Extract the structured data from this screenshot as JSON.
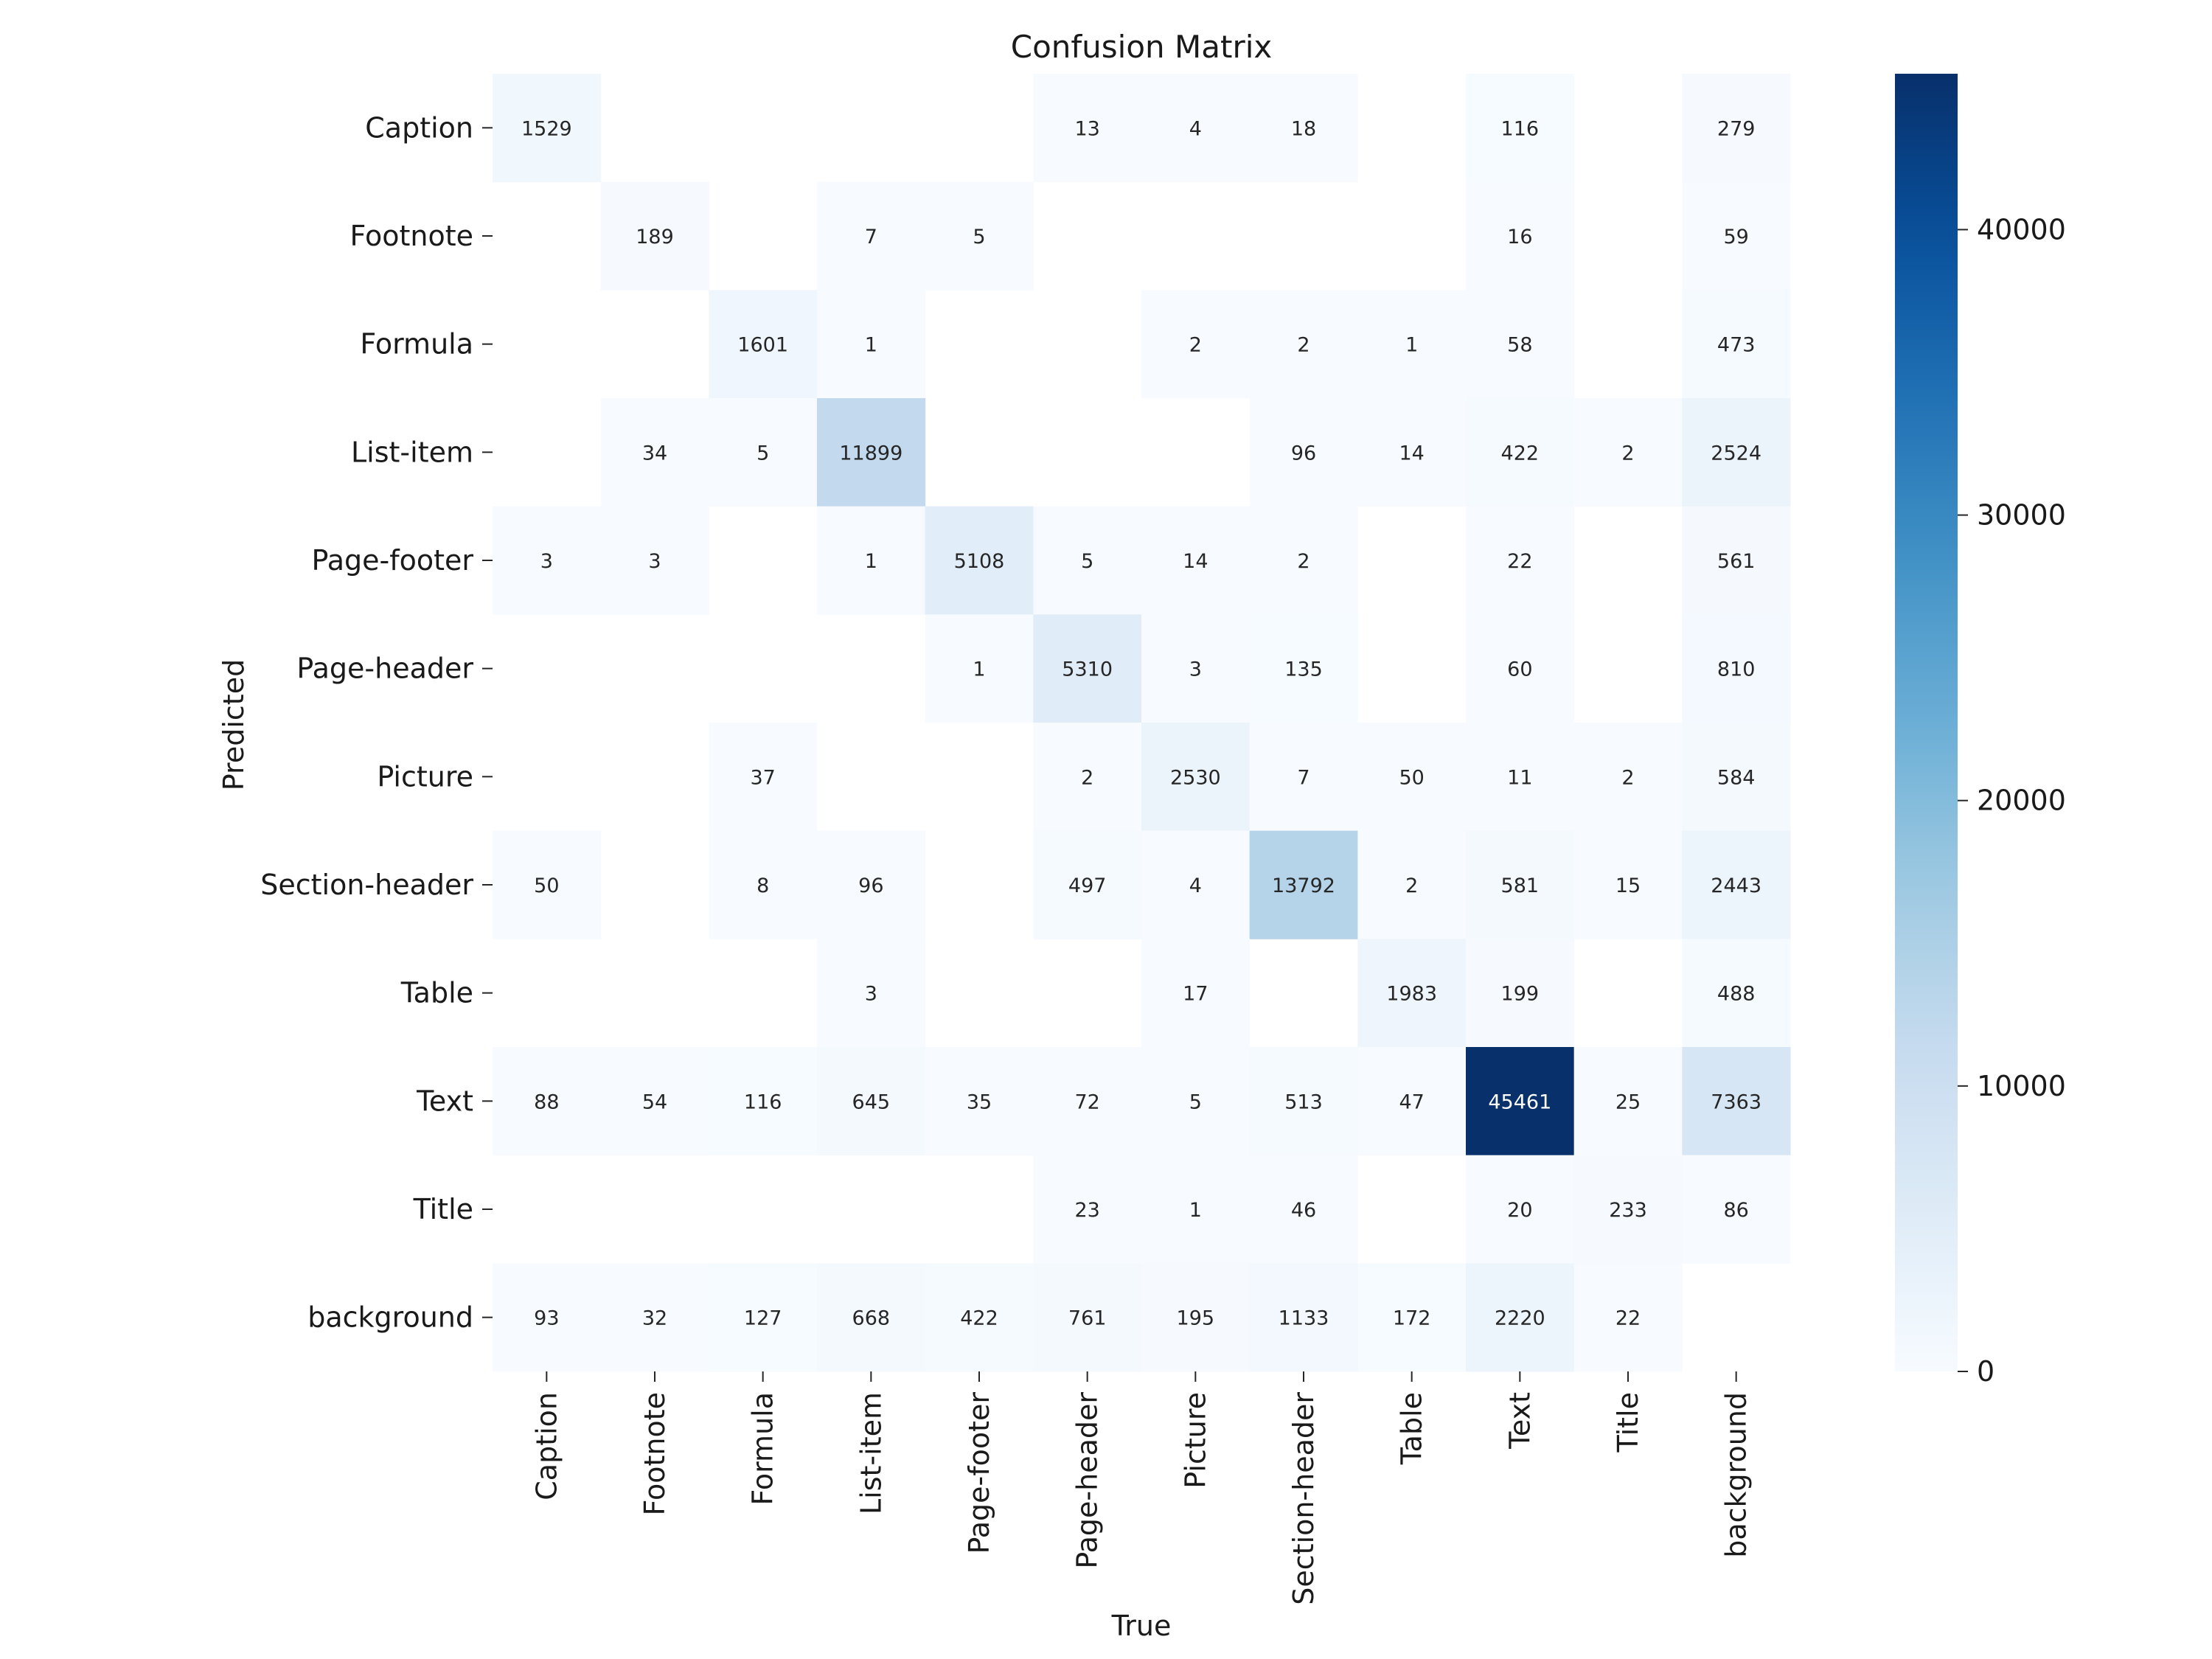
{
  "chart_data": {
    "type": "heatmap",
    "title": "Confusion Matrix",
    "xlabel": "True",
    "ylabel": "Predicted",
    "x_categories": [
      "Caption",
      "Footnote",
      "Formula",
      "List-item",
      "Page-footer",
      "Page-header",
      "Picture",
      "Section-header",
      "Table",
      "Text",
      "Title",
      "background"
    ],
    "y_categories": [
      "Caption",
      "Footnote",
      "Formula",
      "List-item",
      "Page-footer",
      "Page-header",
      "Picture",
      "Section-header",
      "Table",
      "Text",
      "Title",
      "background"
    ],
    "values": [
      [
        1529,
        null,
        null,
        null,
        null,
        13,
        4,
        18,
        null,
        116,
        null,
        279
      ],
      [
        null,
        189,
        null,
        7,
        5,
        null,
        null,
        null,
        null,
        16,
        null,
        59
      ],
      [
        null,
        null,
        1601,
        1,
        null,
        null,
        2,
        2,
        1,
        58,
        null,
        473
      ],
      [
        null,
        34,
        5,
        11899,
        null,
        null,
        null,
        96,
        14,
        422,
        2,
        2524
      ],
      [
        3,
        3,
        null,
        1,
        5108,
        5,
        14,
        2,
        null,
        22,
        null,
        561
      ],
      [
        null,
        null,
        null,
        null,
        1,
        5310,
        3,
        135,
        null,
        60,
        null,
        810
      ],
      [
        null,
        null,
        37,
        null,
        null,
        2,
        2530,
        7,
        50,
        11,
        2,
        584
      ],
      [
        50,
        null,
        8,
        96,
        null,
        497,
        4,
        13792,
        2,
        581,
        15,
        2443
      ],
      [
        null,
        null,
        null,
        3,
        null,
        null,
        17,
        null,
        1983,
        199,
        null,
        488
      ],
      [
        88,
        54,
        116,
        645,
        35,
        72,
        5,
        513,
        47,
        45461,
        25,
        7363
      ],
      [
        null,
        null,
        null,
        null,
        null,
        23,
        1,
        46,
        null,
        20,
        233,
        86
      ],
      [
        93,
        32,
        127,
        668,
        422,
        761,
        195,
        1133,
        172,
        2220,
        22,
        null
      ]
    ],
    "colormap": "Blues",
    "color_range": [
      0,
      45461
    ],
    "colorbar_ticks": [
      0,
      10000,
      20000,
      30000,
      40000
    ],
    "colors": {
      "low": "#f7fbff",
      "high": "#08306b"
    }
  }
}
